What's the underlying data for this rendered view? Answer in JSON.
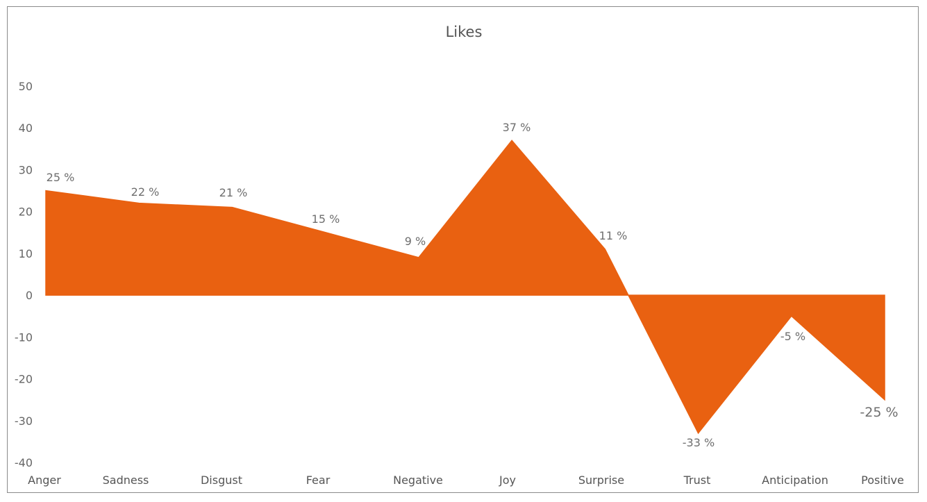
{
  "chart_data": {
    "type": "area",
    "title": "Likes",
    "categories": [
      "Anger",
      "Sadness",
      "Disgust",
      "Fear",
      "Negative",
      "Joy",
      "Surprise",
      "Trust",
      "Anticipation",
      "Positive"
    ],
    "series": [
      {
        "values": [
          25,
          22,
          21,
          15,
          9,
          37,
          11,
          -33,
          -5,
          -25
        ],
        "color": "#E96111"
      }
    ],
    "data_labels": [
      "25 %",
      "22 %",
      "21 %",
      "15 %",
      "9 %",
      "37 %",
      "11 %",
      "-33 %",
      "-5 %",
      "-25 %"
    ],
    "y_ticks": [
      "50",
      "40",
      "30",
      "20",
      "10",
      "0",
      "-10",
      "-20",
      "-30",
      "-40"
    ],
    "ylim": [
      -40,
      50
    ],
    "xlabel": "",
    "ylabel": "",
    "grid": false,
    "legend": "none"
  }
}
